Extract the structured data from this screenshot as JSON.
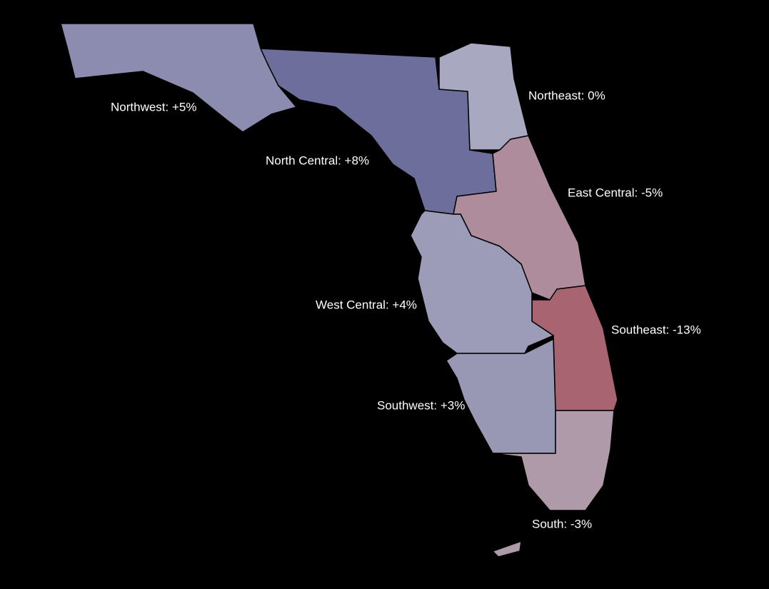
{
  "regions": [
    {
      "label": "Northwest: +5%"
    },
    {
      "label": "North Central: +8%"
    },
    {
      "label": "Northeast: 0%"
    },
    {
      "label": "East Central: -5%"
    },
    {
      "label": "West Central: +4%"
    },
    {
      "label": "Southeast: -13%"
    },
    {
      "label": "Southwest: +3%"
    },
    {
      "label": "South: -3%"
    }
  ]
}
